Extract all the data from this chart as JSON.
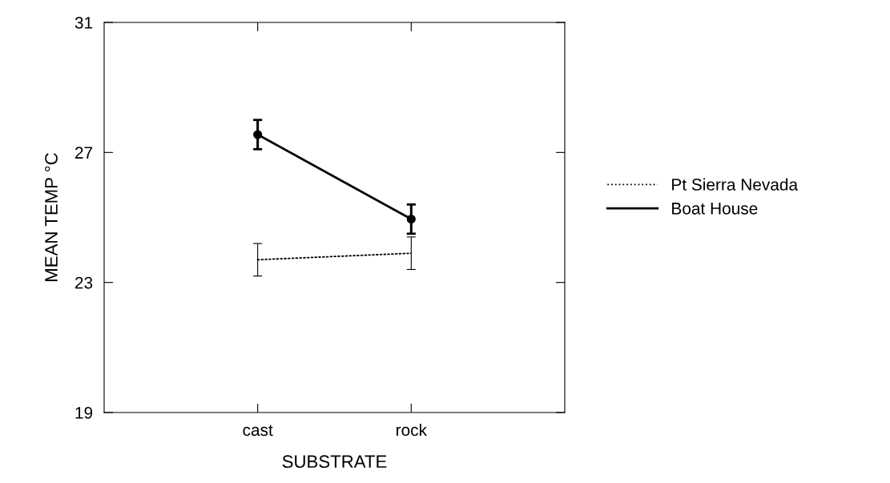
{
  "chart_data": {
    "type": "line",
    "xlabel": "SUBSTRATE",
    "ylabel": "MEAN TEMP °C",
    "categories": [
      "cast",
      "rock"
    ],
    "series": [
      {
        "name": "Pt Sierra Nevada",
        "color": "#000000",
        "values": [
          23.7,
          23.9
        ],
        "errors": [
          0.5,
          0.5
        ],
        "line_style": "dotted",
        "marker": "none"
      },
      {
        "name": "Boat House",
        "color": "#000000",
        "values": [
          27.55,
          24.95
        ],
        "errors": [
          0.45,
          0.45
        ],
        "line_style": "solid",
        "marker": "circle"
      }
    ],
    "ylim": [
      19,
      31
    ],
    "yticks": [
      19,
      23,
      27,
      31
    ],
    "grid": false,
    "legend": "right"
  }
}
